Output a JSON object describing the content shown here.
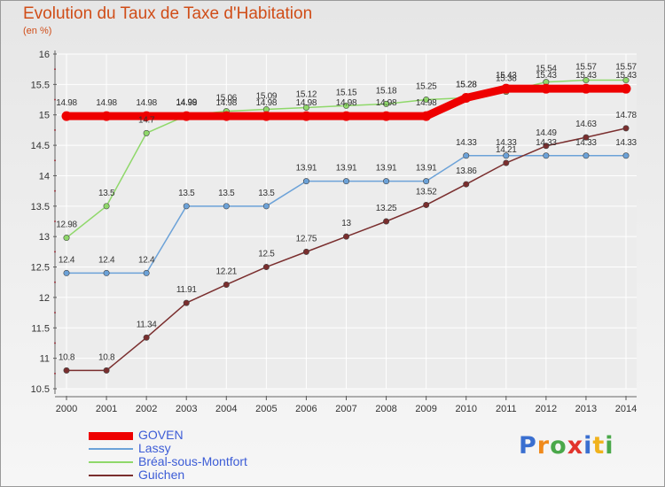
{
  "header": {
    "title": "Evolution du Taux de Taxe d'Habitation",
    "unit": "(en %)"
  },
  "chart_data": {
    "type": "line",
    "title": "Evolution du Taux de Taxe d'Habitation",
    "ylabel": "(en %)",
    "xlabel": "",
    "x": [
      "2000",
      "2001",
      "2002",
      "2003",
      "2004",
      "2005",
      "2006",
      "2007",
      "2008",
      "2009",
      "2010",
      "2011",
      "2012",
      "2013",
      "2014"
    ],
    "yticks": [
      "10.5",
      "11",
      "11.5",
      "12",
      "12.5",
      "13",
      "13.5",
      "14",
      "14.5",
      "15",
      "15.5",
      "16"
    ],
    "ylim": [
      10.5,
      16
    ],
    "grid": true,
    "legend_position": "bottom-left",
    "series": [
      {
        "name": "GOVEN",
        "color": "#ee0000",
        "values": [
          14.98,
          14.98,
          14.98,
          14.98,
          14.98,
          14.98,
          14.98,
          14.98,
          14.98,
          14.98,
          15.28,
          15.43,
          15.43,
          15.43,
          15.43
        ],
        "labels": [
          "14.98",
          "14.98",
          "14.98",
          "14.98",
          "14.98",
          "14.98",
          "14.98",
          "14.98",
          "14.98",
          "14.98",
          "15.28",
          "15.43",
          "15.43",
          "15.43",
          "15.43"
        ]
      },
      {
        "name": "Lassy",
        "color": "#6ca2d8",
        "values": [
          12.4,
          12.4,
          12.4,
          13.5,
          13.5,
          13.5,
          13.91,
          13.91,
          13.91,
          13.91,
          14.33,
          14.33,
          14.33,
          14.33,
          14.33
        ],
        "labels": [
          "12.4",
          "12.4",
          "12.4",
          "13.5",
          "13.5",
          "13.5",
          "13.91",
          "13.91",
          "13.91",
          "13.91",
          "14.33",
          "14.33",
          "14.33",
          "14.33",
          "14.33"
        ]
      },
      {
        "name": "Bréal-sous-Montfort",
        "color": "#8fd86a",
        "values": [
          12.98,
          13.5,
          14.7,
          14.99,
          15.06,
          15.09,
          15.12,
          15.15,
          15.18,
          15.25,
          15.28,
          15.38,
          15.54,
          15.57,
          15.57
        ],
        "labels": [
          "12.98",
          "13.5",
          "14.7",
          "14.99",
          "15.06",
          "15.09",
          "15.12",
          "15.15",
          "15.18",
          "15.25",
          "15.28",
          "15.38",
          "15.54",
          "15.57",
          "15.57"
        ]
      },
      {
        "name": "Guichen",
        "color": "#7a2e2e",
        "values": [
          10.8,
          10.8,
          11.34,
          11.91,
          12.21,
          12.5,
          12.75,
          13,
          13.25,
          13.52,
          13.86,
          14.21,
          14.49,
          14.63,
          14.78
        ],
        "labels": [
          "10.8",
          "10.8",
          "11.34",
          "11.91",
          "12.21",
          "12.5",
          "12.75",
          "13",
          "13.25",
          "13.52",
          "13.86",
          "14.21",
          "14.49",
          "14.63",
          "14.78"
        ]
      }
    ]
  },
  "legend": {
    "items": [
      {
        "name": "GOVEN",
        "color": "#ee0000"
      },
      {
        "name": "Lassy",
        "color": "#6ca2d8"
      },
      {
        "name": "Bréal-sous-Montfort",
        "color": "#8fd86a"
      },
      {
        "name": "Guichen",
        "color": "#7a2e2e"
      }
    ]
  },
  "logo": {
    "letters": [
      "P",
      "r",
      "o",
      "x",
      "i",
      "t",
      "i"
    ],
    "colors": [
      "#3a6fd0",
      "#f08a1c",
      "#4aa84a",
      "#e2342c",
      "#3a6fd0",
      "#f0b21c",
      "#4aa84a"
    ]
  }
}
